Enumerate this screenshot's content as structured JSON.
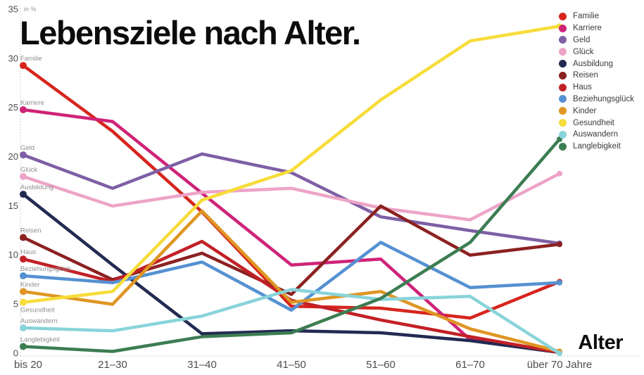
{
  "title": "Lebensziele nach Alter.",
  "y_axis": {
    "unit": "in %",
    "ticks": [
      0,
      5,
      10,
      15,
      20,
      25,
      30,
      35
    ],
    "max": 35
  },
  "x_axis": {
    "title": "Alter"
  },
  "chart_data": {
    "type": "line",
    "title": "Lebensziele nach Alter.",
    "xlabel": "Alter",
    "ylabel": "in %",
    "ylim": [
      0,
      35
    ],
    "grid": false,
    "legend_position": "top-right",
    "categories": [
      "bis 20",
      "21–30",
      "31–40",
      "41–50",
      "51–60",
      "61–70",
      "über 70 Jahre"
    ],
    "series": [
      {
        "name": "Familie",
        "color": "#d6251d",
        "label_position": "above",
        "values": [
          29.3,
          22.6,
          14.4,
          4.8,
          4.6,
          3.6,
          7.3
        ]
      },
      {
        "name": "Karriere",
        "color": "#cf2378",
        "label_position": "above",
        "values": [
          24.8,
          23.6,
          16.3,
          9.0,
          9.6,
          1.4,
          0.1
        ]
      },
      {
        "name": "Geld",
        "color": "#7e5fa5",
        "label_position": "above",
        "values": [
          20.2,
          16.8,
          20.3,
          18.4,
          13.9,
          12.5,
          11.2
        ]
      },
      {
        "name": "Glück",
        "color": "#eda4c8",
        "label_position": "above",
        "values": [
          18.0,
          15.0,
          16.4,
          16.8,
          14.8,
          13.6,
          18.3
        ]
      },
      {
        "name": "Ausbildung",
        "color": "#232a52",
        "label_position": "above",
        "values": [
          16.2,
          9.0,
          2.0,
          2.3,
          2.1,
          1.3,
          0.1
        ]
      },
      {
        "name": "Reisen",
        "color": "#8c2121",
        "label_position": "above",
        "values": [
          11.8,
          7.5,
          10.2,
          6.0,
          15.0,
          10.0,
          11.1
        ]
      },
      {
        "name": "Haus",
        "color": "#c22026",
        "label_position": "above",
        "values": [
          9.6,
          7.3,
          11.4,
          5.4,
          3.4,
          1.7,
          0.1
        ]
      },
      {
        "name": "Beziehungsglück",
        "color": "#5591d2",
        "label_position": "above",
        "values": [
          7.9,
          7.2,
          9.3,
          4.4,
          11.3,
          6.7,
          7.2
        ]
      },
      {
        "name": "Kinder",
        "color": "#df9623",
        "label_position": "above",
        "values": [
          6.3,
          5.0,
          14.5,
          5.2,
          6.3,
          2.5,
          0.2
        ]
      },
      {
        "name": "Gesundheit",
        "color": "#f7dc3a",
        "label_position": "below",
        "values": [
          5.2,
          6.3,
          15.6,
          18.6,
          25.8,
          31.8,
          33.3
        ]
      },
      {
        "name": "Auswandern",
        "color": "#88d4da",
        "label_position": "above",
        "values": [
          2.6,
          2.3,
          3.8,
          6.5,
          5.5,
          5.8,
          0.0
        ]
      },
      {
        "name": "Langlebigkeit",
        "color": "#3c7d52",
        "label_position": "above",
        "values": [
          0.7,
          0.2,
          1.7,
          2.1,
          5.6,
          11.3,
          21.8
        ]
      }
    ]
  }
}
